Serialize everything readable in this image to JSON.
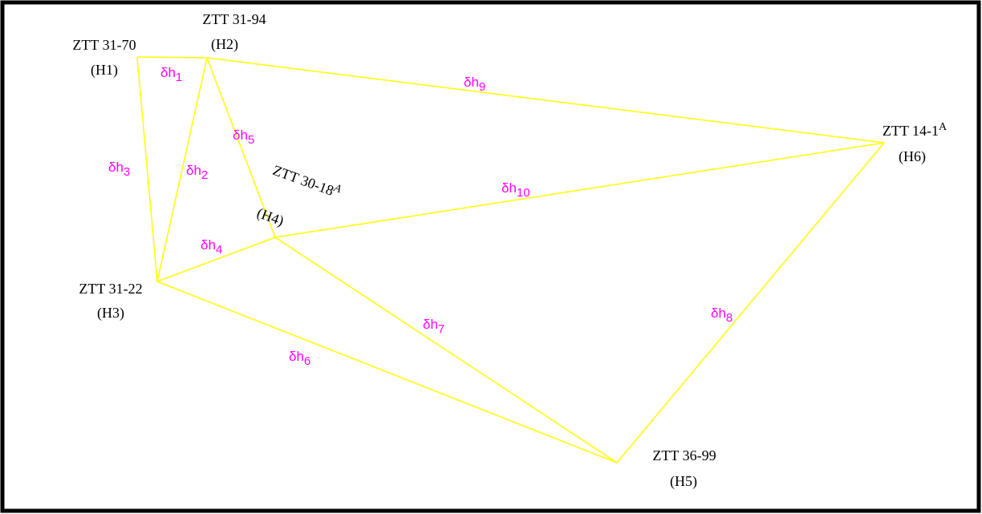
{
  "nodes": [
    {
      "name": "ZTT 31-70",
      "id": "(H1)"
    },
    {
      "name": "ZTT 31-94",
      "id": "(H2)"
    },
    {
      "name": "ZTT 31-22",
      "id": "(H3)"
    },
    {
      "name": "ZTT 30-18",
      "sup": "A",
      "id": "(H4)"
    },
    {
      "name": "ZTT 36-99",
      "id": "(H5)"
    },
    {
      "name": "ZTT 14-1",
      "sup": "A",
      "id": "(H6)"
    }
  ],
  "edges": [
    {
      "symbol": "δh",
      "sub": "1"
    },
    {
      "symbol": "δh",
      "sub": "2"
    },
    {
      "symbol": "δh",
      "sub": "3"
    },
    {
      "symbol": "δh",
      "sub": "4"
    },
    {
      "symbol": "δh",
      "sub": "5"
    },
    {
      "symbol": "δh",
      "sub": "6"
    },
    {
      "symbol": "δh",
      "sub": "7"
    },
    {
      "symbol": "δh",
      "sub": "8"
    },
    {
      "symbol": "δh",
      "sub": "9"
    },
    {
      "symbol": "δh",
      "sub": "10"
    }
  ]
}
